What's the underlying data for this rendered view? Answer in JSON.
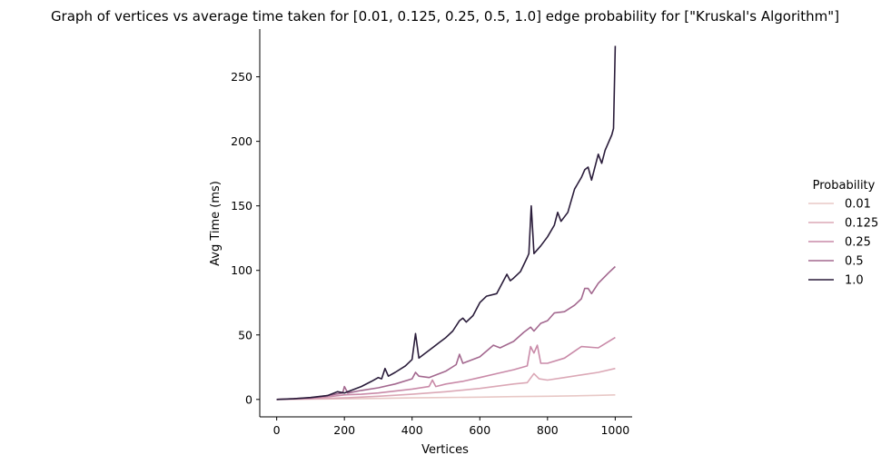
{
  "chart_data": {
    "type": "line",
    "title": "Graph of vertices vs average time taken for [0.01, 0.125, 0.25, 0.5, 1.0] edge probability for [\"Kruskal's Algorithm\"]",
    "xlabel": "Vertices",
    "ylabel": "Avg Time (ms)",
    "xlim": [
      -50,
      1050
    ],
    "ylim": [
      -13.5,
      287
    ],
    "xticks": [
      0,
      200,
      400,
      600,
      800,
      1000
    ],
    "yticks": [
      0,
      50,
      100,
      150,
      200,
      250
    ],
    "grid": false,
    "legend": {
      "title": "Probability",
      "placement": "right"
    },
    "series": [
      {
        "name": "0.01",
        "color": "#e8c8c6",
        "points": [
          [
            0,
            0
          ],
          [
            100,
            0.2
          ],
          [
            200,
            0.5
          ],
          [
            300,
            0.8
          ],
          [
            400,
            1.2
          ],
          [
            500,
            1.5
          ],
          [
            600,
            1.8
          ],
          [
            700,
            2.2
          ],
          [
            800,
            2.5
          ],
          [
            900,
            2.9
          ],
          [
            950,
            3.2
          ],
          [
            1000,
            3.5
          ]
        ]
      },
      {
        "name": "0.125",
        "color": "#dba8b6",
        "points": [
          [
            0,
            0
          ],
          [
            100,
            0.4
          ],
          [
            200,
            1.2
          ],
          [
            300,
            2.5
          ],
          [
            400,
            4
          ],
          [
            500,
            6
          ],
          [
            600,
            8.5
          ],
          [
            700,
            12
          ],
          [
            740,
            13
          ],
          [
            760,
            20
          ],
          [
            775,
            16
          ],
          [
            800,
            15
          ],
          [
            850,
            17
          ],
          [
            900,
            19
          ],
          [
            950,
            21
          ],
          [
            1000,
            24
          ]
        ]
      },
      {
        "name": "0.25",
        "color": "#c98aa8",
        "points": [
          [
            0,
            0
          ],
          [
            100,
            0.8
          ],
          [
            150,
            2
          ],
          [
            200,
            3.5
          ],
          [
            250,
            4
          ],
          [
            300,
            5
          ],
          [
            350,
            6.5
          ],
          [
            400,
            8
          ],
          [
            450,
            10
          ],
          [
            460,
            15
          ],
          [
            470,
            10
          ],
          [
            500,
            12
          ],
          [
            550,
            14
          ],
          [
            600,
            17
          ],
          [
            650,
            20
          ],
          [
            700,
            23
          ],
          [
            740,
            26
          ],
          [
            750,
            41
          ],
          [
            760,
            36
          ],
          [
            770,
            42
          ],
          [
            780,
            28
          ],
          [
            800,
            28
          ],
          [
            850,
            32
          ],
          [
            900,
            41
          ],
          [
            950,
            40
          ],
          [
            1000,
            48
          ]
        ]
      },
      {
        "name": "0.5",
        "color": "#a3688f",
        "points": [
          [
            0,
            0
          ],
          [
            100,
            1.2
          ],
          [
            150,
            3
          ],
          [
            195,
            5
          ],
          [
            200,
            10
          ],
          [
            210,
            5
          ],
          [
            250,
            7
          ],
          [
            300,
            9
          ],
          [
            350,
            12
          ],
          [
            400,
            16
          ],
          [
            410,
            21
          ],
          [
            420,
            18
          ],
          [
            450,
            17
          ],
          [
            500,
            22
          ],
          [
            530,
            27
          ],
          [
            540,
            35
          ],
          [
            550,
            28
          ],
          [
            600,
            33
          ],
          [
            640,
            42
          ],
          [
            660,
            40
          ],
          [
            700,
            45
          ],
          [
            730,
            52
          ],
          [
            750,
            56
          ],
          [
            760,
            53
          ],
          [
            780,
            59
          ],
          [
            800,
            61
          ],
          [
            820,
            67
          ],
          [
            850,
            68
          ],
          [
            880,
            73
          ],
          [
            900,
            78
          ],
          [
            910,
            86
          ],
          [
            920,
            86
          ],
          [
            930,
            82
          ],
          [
            950,
            90
          ],
          [
            980,
            98
          ],
          [
            1000,
            103
          ]
        ]
      },
      {
        "name": "1.0",
        "color": "#2a1c3a",
        "points": [
          [
            0,
            0
          ],
          [
            50,
            0.5
          ],
          [
            100,
            1.5
          ],
          [
            150,
            3
          ],
          [
            180,
            6
          ],
          [
            200,
            5
          ],
          [
            250,
            10
          ],
          [
            280,
            14
          ],
          [
            300,
            17
          ],
          [
            310,
            16
          ],
          [
            320,
            24
          ],
          [
            330,
            18
          ],
          [
            350,
            21
          ],
          [
            380,
            26
          ],
          [
            400,
            31
          ],
          [
            410,
            51
          ],
          [
            420,
            32
          ],
          [
            450,
            38
          ],
          [
            480,
            44
          ],
          [
            500,
            48
          ],
          [
            520,
            53
          ],
          [
            540,
            61
          ],
          [
            550,
            63
          ],
          [
            560,
            60
          ],
          [
            580,
            65
          ],
          [
            600,
            75
          ],
          [
            620,
            80
          ],
          [
            650,
            82
          ],
          [
            680,
            97
          ],
          [
            690,
            92
          ],
          [
            700,
            94
          ],
          [
            720,
            99
          ],
          [
            740,
            110
          ],
          [
            745,
            113
          ],
          [
            752,
            150
          ],
          [
            760,
            113
          ],
          [
            780,
            119
          ],
          [
            800,
            126
          ],
          [
            820,
            135
          ],
          [
            830,
            145
          ],
          [
            840,
            138
          ],
          [
            860,
            145
          ],
          [
            880,
            163
          ],
          [
            900,
            172
          ],
          [
            910,
            178
          ],
          [
            920,
            180
          ],
          [
            930,
            170
          ],
          [
            950,
            190
          ],
          [
            960,
            183
          ],
          [
            970,
            193
          ],
          [
            990,
            205
          ],
          [
            995,
            210
          ],
          [
            1000,
            274
          ]
        ]
      }
    ]
  }
}
